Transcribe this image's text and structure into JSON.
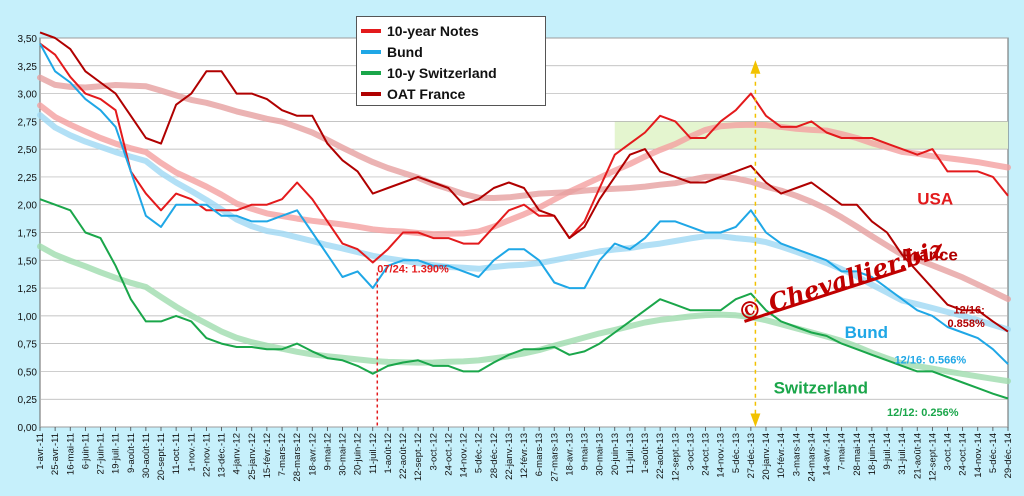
{
  "chart_data": {
    "type": "line",
    "title": "",
    "xlabel": "",
    "ylabel": "",
    "ylim": [
      0,
      3.5
    ],
    "yticks": [
      "0,00",
      "0,25",
      "0,50",
      "0,75",
      "1,00",
      "1,25",
      "1,50",
      "1,75",
      "2,00",
      "2,25",
      "2,50",
      "2,75",
      "3,00",
      "3,25",
      "3,50"
    ],
    "xticks": [
      "1-avr.-11",
      "25-avr.-11",
      "16-mai-11",
      "6-juin-11",
      "27-juin-11",
      "19-juil.-11",
      "9-août-11",
      "30-août-11",
      "20-sept.-11",
      "11-oct.-11",
      "1-nov.-11",
      "22-nov.-11",
      "13-déc.-11",
      "4-janv.-12",
      "25-janv.-12",
      "15-févr.-12",
      "7-mars-12",
      "28-mars-12",
      "18-avr.-12",
      "9-mai-12",
      "30-mai-12",
      "20-juin-12",
      "11-juil.-12",
      "1-août-12",
      "22-août-12",
      "12-sept.-12",
      "3-oct.-12",
      "24-oct.-12",
      "14-nov.-12",
      "5-déc.-12",
      "28-déc.-12",
      "22-janv.-13",
      "12-févr.-13",
      "6-mars-13",
      "27-mars-13",
      "18-avr.-13",
      "9-mai-13",
      "30-mai-13",
      "20-juin-13",
      "11-juil.-13",
      "1-août-13",
      "22-août-13",
      "12-sept.-13",
      "3-oct.-13",
      "24-oct.-13",
      "14-nov.-13",
      "5-déc.-13",
      "27-déc.-13",
      "20-janv.-14",
      "10-févr.-14",
      "3-mars-14",
      "24-mars-14",
      "14-avr.-14",
      "7-mai-14",
      "28-mai-14",
      "18-juin-14",
      "9-juil.-14",
      "31-juil.-14",
      "21-août-14",
      "12-sept.-14",
      "3-oct.-14",
      "24-oct.-14",
      "14-nov.-14",
      "5-déc.-14",
      "29-déc.-14"
    ],
    "legend_position": "top-center",
    "grid": true,
    "shaded_band": [
      2.5,
      2.75
    ],
    "series": [
      {
        "name": "10-year Notes",
        "color": "#e31a1c",
        "values": [
          3.45,
          3.35,
          3.15,
          3.0,
          2.95,
          2.85,
          2.3,
          2.1,
          1.95,
          2.1,
          2.05,
          1.95,
          1.95,
          1.95,
          2.0,
          2.0,
          2.05,
          2.2,
          2.05,
          1.85,
          1.65,
          1.6,
          1.48,
          1.6,
          1.75,
          1.75,
          1.7,
          1.7,
          1.65,
          1.65,
          1.8,
          1.95,
          2.0,
          1.9,
          1.9,
          1.7,
          1.85,
          2.15,
          2.45,
          2.55,
          2.65,
          2.8,
          2.75,
          2.6,
          2.6,
          2.75,
          2.85,
          3.0,
          2.8,
          2.7,
          2.7,
          2.75,
          2.65,
          2.6,
          2.6,
          2.6,
          2.55,
          2.5,
          2.45,
          2.5,
          2.3,
          2.3,
          2.3,
          2.25,
          2.08
        ]
      },
      {
        "name": "Bund",
        "color": "#1fa7e6",
        "values": [
          3.45,
          3.2,
          3.1,
          2.95,
          2.85,
          2.7,
          2.3,
          1.9,
          1.8,
          2.0,
          2.0,
          2.0,
          1.9,
          1.9,
          1.85,
          1.85,
          1.9,
          1.95,
          1.75,
          1.55,
          1.35,
          1.4,
          1.25,
          1.45,
          1.5,
          1.5,
          1.45,
          1.45,
          1.4,
          1.35,
          1.5,
          1.6,
          1.6,
          1.5,
          1.3,
          1.25,
          1.25,
          1.5,
          1.65,
          1.6,
          1.7,
          1.85,
          1.85,
          1.8,
          1.75,
          1.75,
          1.8,
          1.95,
          1.75,
          1.65,
          1.6,
          1.55,
          1.5,
          1.4,
          1.4,
          1.35,
          1.25,
          1.15,
          1.05,
          1.0,
          0.9,
          0.85,
          0.8,
          0.7,
          0.566
        ]
      },
      {
        "name": "10-y Switzerland",
        "color": "#1aa64a",
        "values": [
          2.05,
          2.0,
          1.95,
          1.75,
          1.7,
          1.45,
          1.15,
          0.95,
          0.95,
          1.0,
          0.95,
          0.8,
          0.75,
          0.72,
          0.72,
          0.7,
          0.7,
          0.75,
          0.68,
          0.62,
          0.6,
          0.55,
          0.48,
          0.55,
          0.58,
          0.6,
          0.55,
          0.55,
          0.5,
          0.5,
          0.58,
          0.65,
          0.7,
          0.7,
          0.72,
          0.65,
          0.68,
          0.75,
          0.85,
          0.95,
          1.05,
          1.15,
          1.1,
          1.05,
          1.05,
          1.05,
          1.15,
          1.2,
          1.05,
          0.95,
          0.9,
          0.85,
          0.82,
          0.75,
          0.7,
          0.65,
          0.6,
          0.55,
          0.5,
          0.5,
          0.45,
          0.4,
          0.35,
          0.3,
          0.256
        ]
      },
      {
        "name": "OAT France",
        "color": "#b00000",
        "values": [
          3.55,
          3.5,
          3.4,
          3.2,
          3.1,
          3.0,
          2.8,
          2.6,
          2.55,
          2.9,
          3.0,
          3.2,
          3.2,
          3.0,
          3.0,
          2.95,
          2.85,
          2.8,
          2.8,
          2.55,
          2.4,
          2.3,
          2.1,
          2.15,
          2.2,
          2.25,
          2.2,
          2.15,
          2.0,
          2.05,
          2.15,
          2.2,
          2.15,
          1.95,
          1.9,
          1.7,
          1.8,
          2.05,
          2.25,
          2.45,
          2.5,
          2.3,
          2.25,
          2.2,
          2.2,
          2.25,
          2.3,
          2.35,
          2.2,
          2.1,
          2.15,
          2.2,
          2.1,
          2.0,
          2.0,
          1.85,
          1.75,
          1.55,
          1.4,
          1.25,
          1.1,
          1.05,
          1.05,
          0.95,
          0.858
        ]
      }
    ],
    "annotations": [
      {
        "text": "07/24: 1.390%",
        "series": "10-year Notes",
        "color": "#e31a1c",
        "x_index": 22.3,
        "y": 1.39
      },
      {
        "text": "USA",
        "color": "#e31a1c",
        "x_index": 58,
        "y": 2.0
      },
      {
        "text": "France",
        "color": "#b00000",
        "x_index": 57,
        "y": 1.5
      },
      {
        "text": "Bund",
        "color": "#1fa7e6",
        "x_index": 53.2,
        "y": 0.8
      },
      {
        "text": "Switzerland",
        "color": "#1aa64a",
        "x_index": 48.5,
        "y": 0.3
      },
      {
        "text": "12/16:",
        "color": "#b00000",
        "x_index": 60.4,
        "y": 1.02
      },
      {
        "text": "0.858%",
        "color": "#b00000",
        "x_index": 60.0,
        "y": 0.9
      },
      {
        "text": "12/16: 0.566%",
        "color": "#1fa7e6",
        "x_index": 56.5,
        "y": 0.57
      },
      {
        "text": "12/12: 0.256%",
        "color": "#1aa64a",
        "x_index": 56.0,
        "y": 0.1
      }
    ],
    "watermark": "© Chevallier.biz"
  }
}
